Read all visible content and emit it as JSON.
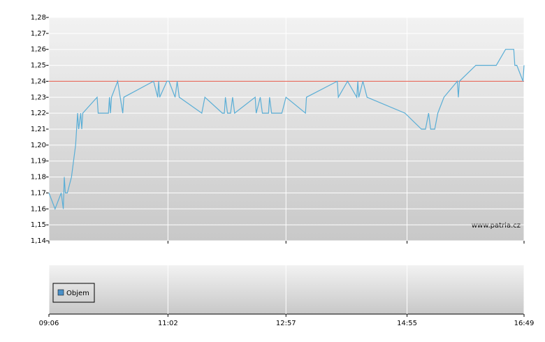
{
  "chart_data": {
    "type": "line",
    "x": [
      "09:06",
      "09:12",
      "09:18",
      "09:20",
      "09:21",
      "09:22",
      "09:24",
      "09:28",
      "09:32",
      "09:34",
      "09:35",
      "09:37",
      "09:38",
      "09:39",
      "09:53",
      "09:54",
      "10:04",
      "10:05",
      "10:06",
      "10:07",
      "10:13",
      "10:18",
      "10:19",
      "10:48",
      "10:52",
      "10:53",
      "10:54",
      "11:01",
      "11:03",
      "11:09",
      "11:11",
      "11:13",
      "11:35",
      "11:38",
      "11:55",
      "11:57",
      "11:58",
      "12:00",
      "12:03",
      "12:05",
      "12:07",
      "12:27",
      "12:28",
      "12:32",
      "12:34",
      "12:40",
      "12:41",
      "12:43",
      "12:53",
      "12:57",
      "13:16",
      "13:17",
      "13:47",
      "13:48",
      "13:57",
      "14:06",
      "14:07",
      "14:08",
      "14:12",
      "14:16",
      "14:53",
      "15:09",
      "15:13",
      "15:16",
      "15:18",
      "15:22",
      "15:25",
      "15:31",
      "15:44",
      "15:45",
      "15:46",
      "16:02",
      "16:22",
      "16:31",
      "16:39",
      "16:40",
      "16:42",
      "16:48",
      "16:49"
    ],
    "series": [
      {
        "color": "#5aaed6",
        "values": [
          1.17,
          1.16,
          1.17,
          1.16,
          1.18,
          1.17,
          1.17,
          1.18,
          1.2,
          1.22,
          1.21,
          1.22,
          1.21,
          1.22,
          1.23,
          1.22,
          1.22,
          1.23,
          1.22,
          1.23,
          1.24,
          1.22,
          1.23,
          1.24,
          1.23,
          1.24,
          1.23,
          1.24,
          1.24,
          1.23,
          1.24,
          1.23,
          1.22,
          1.23,
          1.22,
          1.22,
          1.23,
          1.22,
          1.22,
          1.23,
          1.22,
          1.23,
          1.22,
          1.23,
          1.22,
          1.22,
          1.23,
          1.22,
          1.22,
          1.23,
          1.22,
          1.23,
          1.24,
          1.23,
          1.24,
          1.23,
          1.24,
          1.23,
          1.24,
          1.23,
          1.22,
          1.21,
          1.21,
          1.22,
          1.21,
          1.21,
          1.22,
          1.23,
          1.24,
          1.23,
          1.24,
          1.25,
          1.25,
          1.26,
          1.26,
          1.25,
          1.25,
          1.24,
          1.25
        ]
      }
    ],
    "reference_line": {
      "value": 1.24,
      "color": "#e8685a"
    },
    "xlim": [
      "09:06",
      "16:49"
    ],
    "xticks": [
      "09:06",
      "11:02",
      "12:57",
      "14:55",
      "16:49"
    ],
    "ylim": [
      1.14,
      1.28
    ],
    "yticks": [
      {
        "value": 1.14,
        "label": "1,14"
      },
      {
        "value": 1.15,
        "label": "1,15"
      },
      {
        "value": 1.16,
        "label": "1,16"
      },
      {
        "value": 1.17,
        "label": "1,17"
      },
      {
        "value": 1.18,
        "label": "1,18"
      },
      {
        "value": 1.19,
        "label": "1,19"
      },
      {
        "value": 1.2,
        "label": "1,20"
      },
      {
        "value": 1.21,
        "label": "1,21"
      },
      {
        "value": 1.22,
        "label": "1,22"
      },
      {
        "value": 1.23,
        "label": "1,23"
      },
      {
        "value": 1.24,
        "label": "1,24"
      },
      {
        "value": 1.25,
        "label": "1,25"
      },
      {
        "value": 1.26,
        "label": "1,26"
      },
      {
        "value": 1.27,
        "label": "1,27"
      },
      {
        "value": 1.28,
        "label": "1,28"
      }
    ],
    "grid": true,
    "watermark": "www.patria.cz",
    "volume_legend": {
      "name": "Objem",
      "color": "#4a90c8"
    }
  }
}
